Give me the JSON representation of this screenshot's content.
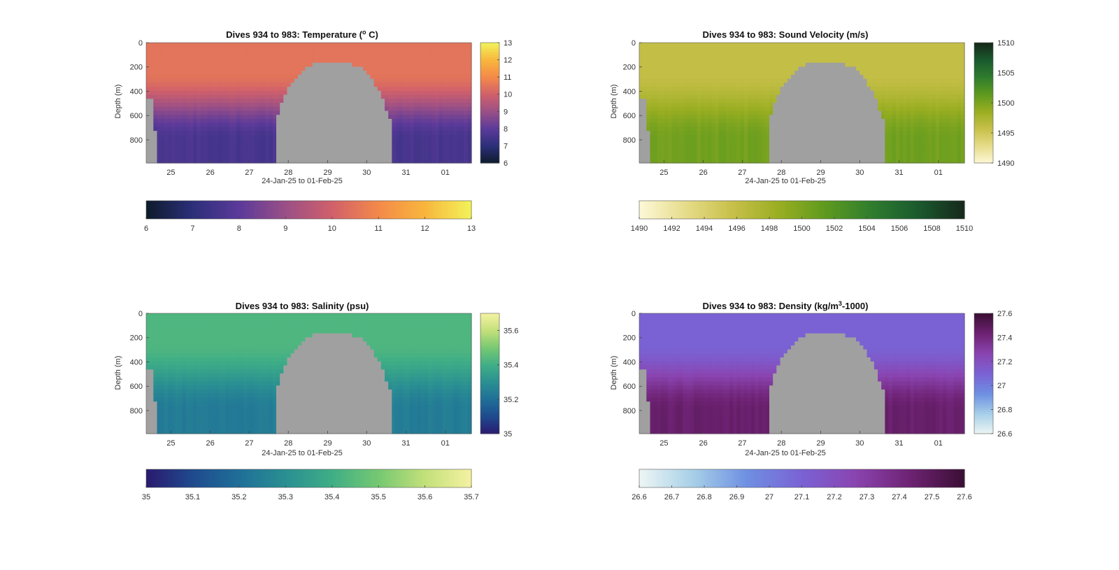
{
  "chart_data": [
    {
      "type": "heatmap",
      "title": "Dives 934 to 983: Temperature (",
      "title_sup": "o",
      "title_suffix": " C)",
      "xlabel": "24-Jan-25 to 01-Feb-25",
      "ylabel": "Depth (m)",
      "x_ticks": [
        "25",
        "26",
        "27",
        "28",
        "29",
        "30",
        "31",
        "01"
      ],
      "y_ticks": [
        "0",
        "200",
        "400",
        "600",
        "800"
      ],
      "ylim": [
        0,
        990
      ],
      "colorbar_ticks": [
        "6",
        "7",
        "8",
        "9",
        "10",
        "11",
        "12",
        "13"
      ],
      "colorbar_range": [
        6,
        13
      ],
      "colormap": [
        "#0d1b2a",
        "#2c2f7a",
        "#5b3a9a",
        "#9a4f86",
        "#d0606b",
        "#f4894a",
        "#f8b63c",
        "#f2f35b"
      ],
      "surface_value": 10.5,
      "deep_value": 7.6,
      "bottom_color": "#a0a0a0"
    },
    {
      "type": "heatmap",
      "title": "Dives 934 to 983: Sound Velocity (m/s)",
      "xlabel": "24-Jan-25 to 01-Feb-25",
      "ylabel": "Depth (m)",
      "x_ticks": [
        "25",
        "26",
        "27",
        "28",
        "29",
        "30",
        "31",
        "01"
      ],
      "y_ticks": [
        "0",
        "200",
        "400",
        "600",
        "800"
      ],
      "ylim": [
        0,
        990
      ],
      "colorbar_ticks_v": [
        "1490",
        "1495",
        "1500",
        "1505",
        "1510"
      ],
      "colorbar_ticks": [
        "1490",
        "1492",
        "1494",
        "1496",
        "1498",
        "1500",
        "1502",
        "1504",
        "1506",
        "1508",
        "1510"
      ],
      "colorbar_range": [
        1490,
        1510
      ],
      "colormap": [
        "#fdf8d8",
        "#e6dc8a",
        "#c8c04a",
        "#9aae22",
        "#5f9a1e",
        "#2f7d2e",
        "#1a5a2e",
        "#16281a"
      ],
      "surface_value": 1496,
      "deep_value": 1500.5,
      "bottom_color": "#a0a0a0"
    },
    {
      "type": "heatmap",
      "title": "Dives 934 to 983: Salinity (psu)",
      "xlabel": "24-Jan-25 to 01-Feb-25",
      "ylabel": "Depth (m)",
      "x_ticks": [
        "25",
        "26",
        "27",
        "28",
        "29",
        "30",
        "31",
        "01"
      ],
      "y_ticks": [
        "0",
        "200",
        "400",
        "600",
        "800"
      ],
      "ylim": [
        0,
        990
      ],
      "colorbar_ticks_v": [
        "35",
        "35.2",
        "35.4",
        "35.6"
      ],
      "colorbar_ticks": [
        "35",
        "35.1",
        "35.2",
        "35.3",
        "35.4",
        "35.5",
        "35.6",
        "35.7"
      ],
      "colorbar_range": [
        35,
        35.7
      ],
      "colormap": [
        "#2a1a6e",
        "#1f4a8e",
        "#1f6f98",
        "#2a8f92",
        "#3fae86",
        "#76c872",
        "#c2e07a",
        "#f5f2a2"
      ],
      "surface_value": 35.43,
      "deep_value": 35.24,
      "bottom_color": "#a0a0a0"
    },
    {
      "type": "heatmap",
      "title": "Dives 934 to 983: Density (kg/m",
      "title_sup": "3",
      "title_suffix": "-1000)",
      "xlabel": "24-Jan-25 to 01-Feb-25",
      "ylabel": "Depth (m)",
      "x_ticks": [
        "25",
        "26",
        "27",
        "28",
        "29",
        "30",
        "31",
        "01"
      ],
      "y_ticks": [
        "0",
        "200",
        "400",
        "600",
        "800"
      ],
      "ylim": [
        0,
        990
      ],
      "colorbar_ticks_v": [
        "26.6",
        "26.8",
        "27",
        "27.2",
        "27.4",
        "27.6"
      ],
      "colorbar_ticks": [
        "26.6",
        "26.7",
        "26.8",
        "26.9",
        "27",
        "27.1",
        "27.2",
        "27.3",
        "27.4",
        "27.5",
        "27.6"
      ],
      "colorbar_range": [
        26.6,
        27.6
      ],
      "colormap": [
        "#eef6f4",
        "#a6cfe8",
        "#6e8fe2",
        "#7a62d4",
        "#8a44b0",
        "#6e2273",
        "#3a0f34"
      ],
      "surface_value": 27.1,
      "deep_value": 27.45,
      "bottom_color": "#a0a0a0"
    }
  ]
}
